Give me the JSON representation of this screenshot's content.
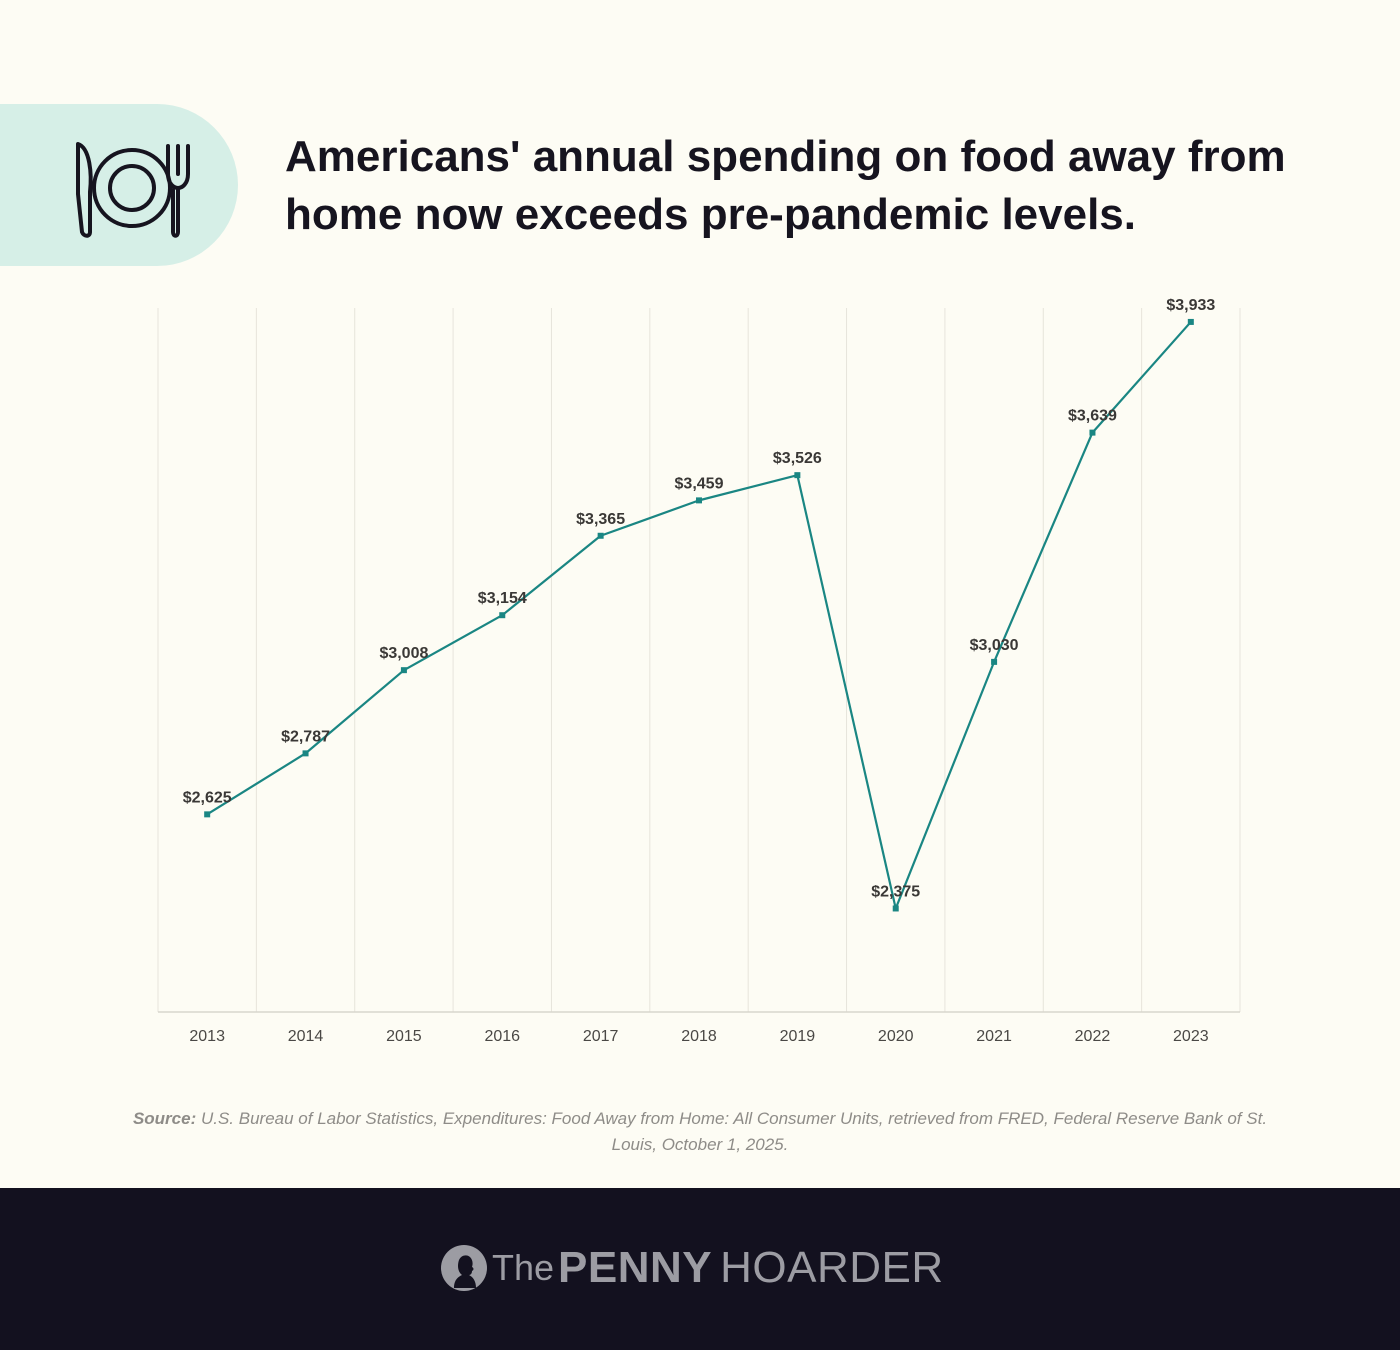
{
  "title": "Americans' annual spending on food away from home now exceeds pre-pandemic levels.",
  "icon": "plate-knife-fork-icon",
  "chart_data": {
    "type": "line",
    "title": "Americans' annual spending on food away from home now exceeds pre-pandemic levels.",
    "xlabel": "",
    "ylabel": "",
    "categories": [
      "2013",
      "2014",
      "2015",
      "2016",
      "2017",
      "2018",
      "2019",
      "2020",
      "2021",
      "2022",
      "2023"
    ],
    "values": [
      2625,
      2787,
      3008,
      3154,
      3365,
      3459,
      3526,
      2375,
      3030,
      3639,
      3933
    ],
    "labels": [
      "$2,625",
      "$2,787",
      "$3,008",
      "$3,154",
      "$3,365",
      "$3,459",
      "$3,526",
      "$2,375",
      "$3,030",
      "$3,639",
      "$3,933"
    ],
    "ylim": [
      2100,
      3970
    ],
    "grid": "vertical",
    "line_color": "#1a8683"
  },
  "source": {
    "label": "Source:",
    "text": "U.S. Bureau of Labor Statistics, Expenditures: Food Away from Home: All Consumer Units, retrieved from FRED, Federal Reserve Bank of St. Louis, October 1, 2025."
  },
  "brand": {
    "the": "The",
    "penny": "PENNY",
    "hoarder": "HOARDER"
  }
}
